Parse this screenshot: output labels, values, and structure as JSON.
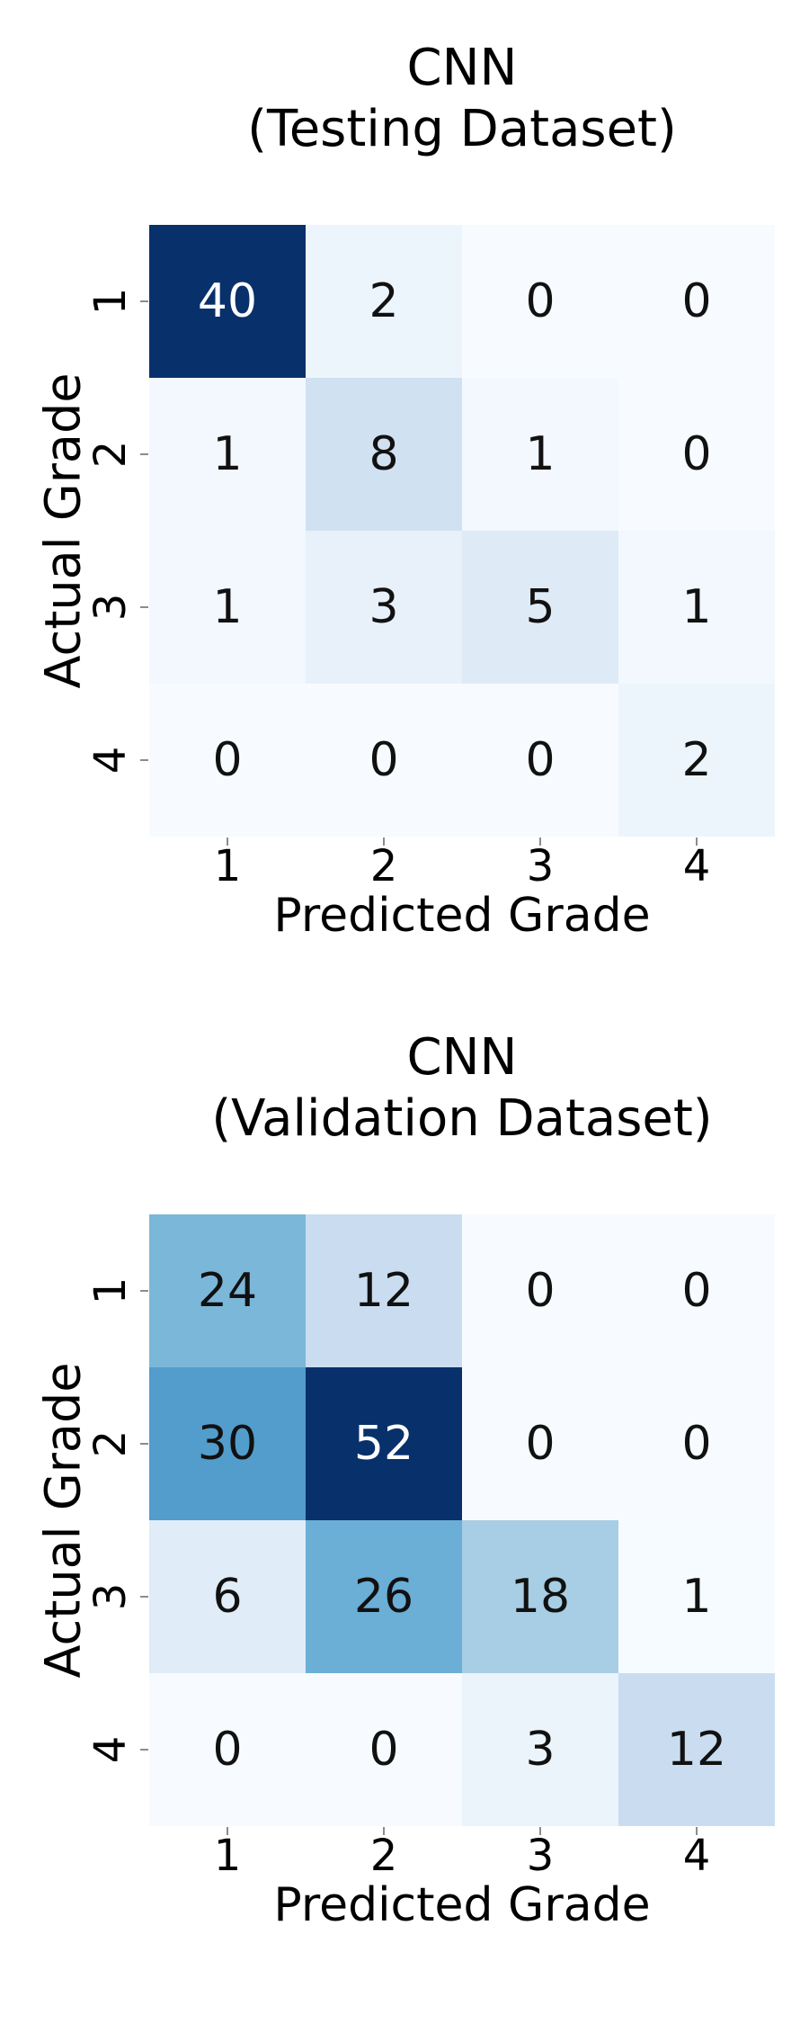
{
  "page": {
    "background": "#ffffff",
    "description_colors": {
      "colormap_low": "#f7fbff",
      "colormap_high": "#08306b"
    }
  },
  "chart_data": [
    {
      "type": "heatmap",
      "id": "cnn-testing-confusion-matrix",
      "title_line1": "CNN",
      "title_line2": "(Testing Dataset)",
      "xlabel": "Predicted Grade",
      "ylabel": "Actual Grade",
      "x_tick_labels": [
        "1",
        "2",
        "3",
        "4"
      ],
      "y_tick_labels": [
        "1",
        "2",
        "3",
        "4"
      ],
      "matrix": [
        [
          40,
          2,
          0,
          0
        ],
        [
          1,
          8,
          1,
          0
        ],
        [
          1,
          3,
          5,
          1
        ],
        [
          0,
          0,
          0,
          2
        ]
      ],
      "colormap": "Blues",
      "vmin": 0,
      "vmax": 40,
      "legend": "none",
      "grid": false,
      "cell_colors": [
        [
          "#08306b",
          "#edf5fc",
          "#f7fbff",
          "#f7fbff"
        ],
        [
          "#f2f8fd",
          "#d0e1f2",
          "#f2f8fd",
          "#f7fbff"
        ],
        [
          "#f2f8fd",
          "#e8f1fa",
          "#deebf7",
          "#f2f8fd"
        ],
        [
          "#f7fbff",
          "#f7fbff",
          "#f7fbff",
          "#edf5fc"
        ]
      ],
      "cell_text_colors": [
        [
          "#ffffff",
          "#111111",
          "#111111",
          "#111111"
        ],
        [
          "#111111",
          "#111111",
          "#111111",
          "#111111"
        ],
        [
          "#111111",
          "#111111",
          "#111111",
          "#111111"
        ],
        [
          "#111111",
          "#111111",
          "#111111",
          "#111111"
        ]
      ]
    },
    {
      "type": "heatmap",
      "id": "cnn-validation-confusion-matrix",
      "title_line1": "CNN",
      "title_line2": "(Validation Dataset)",
      "xlabel": "Predicted Grade",
      "ylabel": "Actual Grade",
      "x_tick_labels": [
        "1",
        "2",
        "3",
        "4"
      ],
      "y_tick_labels": [
        "1",
        "2",
        "3",
        "4"
      ],
      "matrix": [
        [
          24,
          12,
          0,
          0
        ],
        [
          30,
          52,
          0,
          0
        ],
        [
          6,
          26,
          18,
          1
        ],
        [
          0,
          0,
          3,
          12
        ]
      ],
      "colormap": "Blues",
      "vmin": 0,
      "vmax": 52,
      "legend": "none",
      "grid": false,
      "cell_colors": [
        [
          "#7bb7d9",
          "#caddf0",
          "#f7fbff",
          "#f7fbff"
        ],
        [
          "#529dcc",
          "#08306b",
          "#f7fbff",
          "#f7fbff"
        ],
        [
          "#e0ecf8",
          "#6baed6",
          "#a7cee4",
          "#f6fbff"
        ],
        [
          "#f7fbff",
          "#f7fbff",
          "#ebf4fb",
          "#caddf0"
        ]
      ],
      "cell_text_colors": [
        [
          "#111111",
          "#111111",
          "#111111",
          "#111111"
        ],
        [
          "#111111",
          "#ffffff",
          "#111111",
          "#111111"
        ],
        [
          "#111111",
          "#111111",
          "#111111",
          "#111111"
        ],
        [
          "#111111",
          "#111111",
          "#111111",
          "#111111"
        ]
      ]
    }
  ]
}
